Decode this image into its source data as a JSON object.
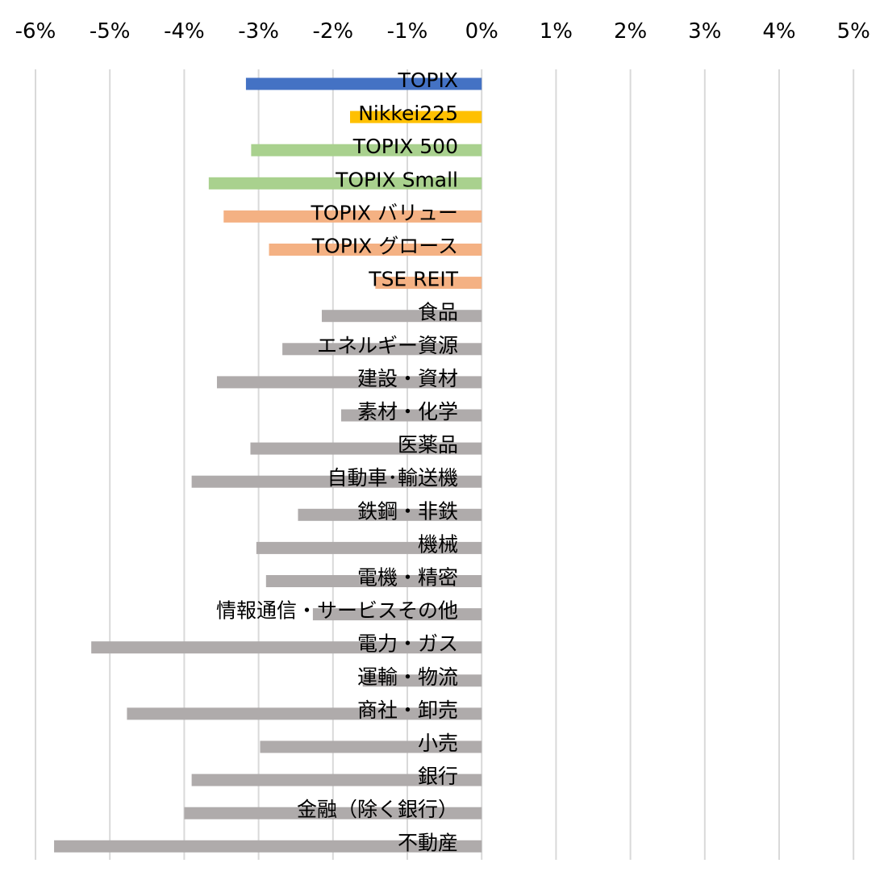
{
  "chart_data": {
    "type": "bar",
    "orientation": "horizontal",
    "xlim": [
      -6,
      5
    ],
    "x_ticks": [
      -6,
      -5,
      -4,
      -3,
      -2,
      -1,
      0,
      1,
      2,
      3,
      4,
      5
    ],
    "x_tick_labels": [
      "-6%",
      "-5%",
      "-4%",
      "-3%",
      "-2%",
      "-1%",
      "0%",
      "1%",
      "2%",
      "3%",
      "4%",
      "5%"
    ],
    "x_axis_position": "top",
    "grid": "vertical",
    "legend": "none",
    "title": "",
    "xlabel": "",
    "ylabel": "",
    "colors": {
      "topix": "#4472C4",
      "nikkei": "#FFC000",
      "size": "#A9D18E",
      "style_reit": "#F4B183",
      "sector": "#AFABAB",
      "grid": "#D9D9D9"
    },
    "categories": [
      "TOPIX",
      "Nikkei225",
      "TOPIX 500",
      "TOPIX Small",
      "TOPIX バリュー",
      "TOPIX グロース",
      "TSE REIT",
      "食品",
      "エネルギー資源",
      "建設・資材",
      "素材・化学",
      "医薬品",
      "自動車･輸送機",
      "鉄鋼・非鉄",
      "機械",
      "電機・精密",
      "情報通信・サービスその他",
      "電力・ガス",
      "運輸・物流",
      "商社・卸売",
      "小売",
      "銀行",
      "金融（除く銀行）",
      "不動産"
    ],
    "values": [
      -3.17,
      -1.77,
      -3.1,
      -3.67,
      -3.47,
      -2.86,
      -1.43,
      -2.15,
      -2.68,
      -3.56,
      -1.89,
      -3.11,
      -3.9,
      -2.47,
      -3.03,
      -2.9,
      -2.27,
      -5.25,
      -1.6,
      -4.77,
      -2.98,
      -3.9,
      -4.0,
      -5.75
    ],
    "bar_color_keys": [
      "topix",
      "nikkei",
      "size",
      "size",
      "style_reit",
      "style_reit",
      "style_reit",
      "sector",
      "sector",
      "sector",
      "sector",
      "sector",
      "sector",
      "sector",
      "sector",
      "sector",
      "sector",
      "sector",
      "sector",
      "sector",
      "sector",
      "sector",
      "sector",
      "sector"
    ]
  }
}
